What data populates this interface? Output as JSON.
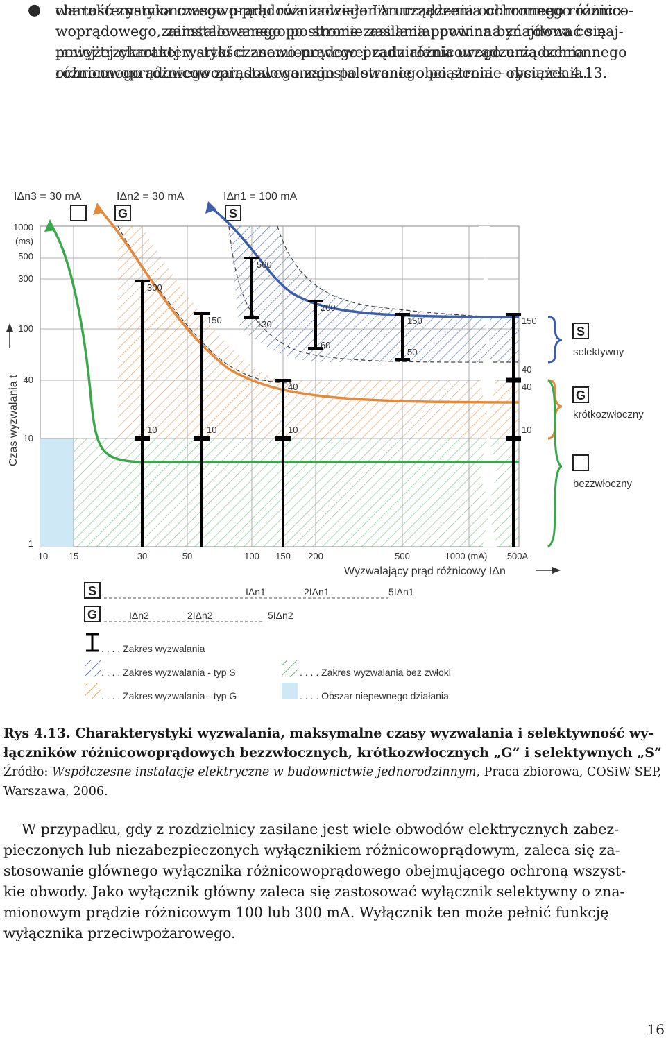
{
  "bullets": [
    {
      "lines": [
        "charakterystyka czasowo-prądowa zadziałania urządzenia ochronnego różnico-",
        "woprądowego, zainstalowanego po stronie zasilania, powinna znajdować się",
        "powyżej charakterystyki czasowo-prądowej zadziałania urządzenia ochronnego",
        "różnicowoprądowego zainstalowanego po stronie obciążenia – rysunek 4.13."
      ]
    },
    {
      "lines": [
        "wartość znamionowego prądu różnicowego IΔn urządzenia ochronnego różnico-",
        "woprądowego zainstalowanego po stronie zasilania powinna być równa co naj-",
        "mniej trzykrotnej wartości znamionowego prądu różnicowego urządzenia",
        "ochronnego różnicowoprądowego zainstalowanego po stronie obciążenia."
      ]
    }
  ],
  "figure": {
    "top_labels": {
      "n3": "IΔn3 = 30 mA",
      "n2": "IΔn2 = 30 mA",
      "n1": "IΔn1 = 100 mA"
    },
    "box_letters": {
      "G": "G",
      "S": "S"
    },
    "y_axis_label": "Czas wyzwalania  t",
    "x_axis_label": "Wyzwalający prąd różnicowy IΔn",
    "y_ticks": [
      "1000",
      "(ms)",
      "500",
      "300",
      "100",
      "40",
      "10",
      "1"
    ],
    "x_ticks": [
      "10",
      "15",
      "30",
      "50",
      "100",
      "150",
      "200",
      "500",
      "1000 (mA)",
      "500A"
    ],
    "bar_labels": [
      {
        "top": "300",
        "bottom": "10"
      },
      {
        "top": "150",
        "bottom": "10"
      },
      {
        "top": "40",
        "bottom": "10"
      },
      {
        "top": "500",
        "bottom": "130"
      },
      {
        "top": "200",
        "bottom": "60"
      },
      {
        "top": "150",
        "bottom": "50"
      },
      {
        "top": "150",
        "bottom": "40"
      },
      {
        "top": "40",
        "bottom": "10"
      }
    ],
    "right_legend": {
      "selective": "selektywny",
      "short_delay": "krótkozwłoczny",
      "instant": "bezzwłoczny"
    },
    "multiples_S": [
      "IΔn1",
      "2IΔn1",
      "5IΔn1"
    ],
    "multiples_G": [
      "IΔn2",
      "2IΔn2",
      "5IΔn2"
    ],
    "legend": {
      "range": ". . . . Zakres wyzwalania",
      "type_s": ". . . . Zakres wyzwalania - typ S",
      "type_g": ". . . . Zakres wyzwalania - typ G",
      "no_delay": ". . . . Zakres wyzwalania bez zwłoki",
      "uncertain": ". . . . Obszar niepewnego działania"
    },
    "colors": {
      "blue": "#3d5ea8",
      "orange": "#e58a3c",
      "green": "#3aa84a",
      "uncertain": "#cfe8f5"
    }
  },
  "caption": {
    "bold_lines": [
      "Rys 4.13. Charakterystyki wyzwalania, maksymalne czasy wyzwalania i selektywność wy-",
      "łączników różnicowoprądowych bezzwłocznych, krótkozwłocznych „G” i selektywnych „S”"
    ],
    "source_prefix": "Źródło: ",
    "source_title": "Współczesne instalacje elektryczne w budownictwie jednorodzinnym",
    "source_rest": ", Praca zbiorowa, COSiW SEP,",
    "source_line2": "Warszawa, 2006."
  },
  "paragraph": [
    "    W przypadku, gdy z rozdzielnicy zasilane jest wiele obwodów elektrycznych zabez-",
    "pieczonych lub niezabezpieczonych wyłącznikiem różnicowoprądowym, zaleca się za-",
    "stosowanie głównego wyłącznika różnicowoprądowego obejmującego ochroną wszyst-",
    "kie obwody. Jako wyłącznik główny zaleca się zastosować wyłącznik selektywny o zna-",
    "mionowym prądzie różnicowym 100 lub 300 mA. Wyłącznik ten może pełnić funkcję",
    "wyłącznika przeciwpożarowego."
  ],
  "page_number": "16"
}
